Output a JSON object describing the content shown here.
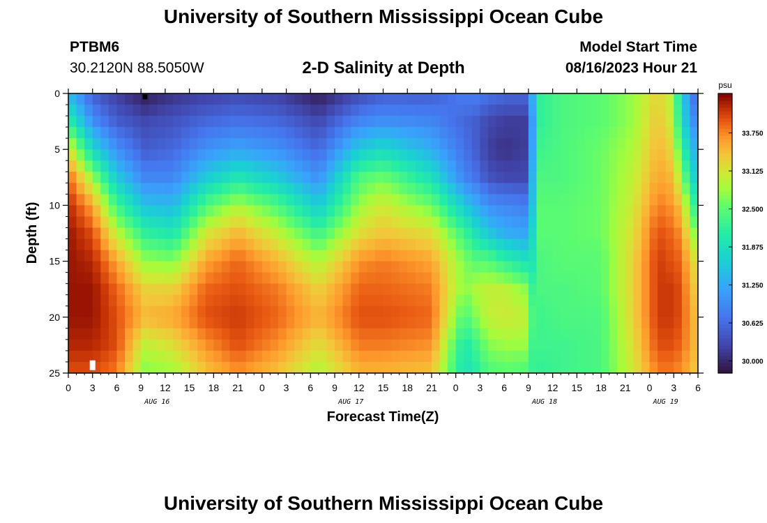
{
  "header": {
    "title": "University of Southern Mississippi Ocean Cube",
    "station_id": "PTBM6",
    "station_coords": "30.2120N  88.5050W",
    "plot_title": "2-D Salinity at Depth",
    "start_label": "Model Start Time",
    "start_value": "08/16/2023 Hour 21"
  },
  "footer": {
    "title": "University of Southern Mississippi Ocean Cube"
  },
  "chart_data": {
    "type": "heatmap",
    "title": "2-D Salinity at Depth",
    "xlabel": "Forecast Time(Z)",
    "ylabel": "Depth (ft)",
    "ylim": [
      0,
      25
    ],
    "y_ticks": [
      0,
      5,
      10,
      15,
      20,
      25
    ],
    "x_range_hours": [
      0,
      78
    ],
    "x_tick_labels": [
      "0",
      "3",
      "6",
      "9",
      "12",
      "15",
      "18",
      "21",
      "0",
      "3",
      "6",
      "9",
      "12",
      "15",
      "18",
      "21",
      "0",
      "3",
      "6",
      "9",
      "12",
      "15",
      "18",
      "21",
      "0",
      "3",
      "6"
    ],
    "date_labels": [
      {
        "label": "AUG 16",
        "hour": 11
      },
      {
        "label": "AUG 17",
        "hour": 35
      },
      {
        "label": "AUG 18",
        "hour": 59
      },
      {
        "label": "AUG 19",
        "hour": 74
      }
    ],
    "colorbar": {
      "unit": "psu",
      "min": 29.8,
      "max": 34.4,
      "tick_values": [
        30.0,
        30.625,
        31.25,
        31.875,
        32.5,
        33.125,
        33.75
      ],
      "tick_labels": [
        "30.000",
        "30.625",
        "31.250",
        "31.875",
        "32.500",
        "33.125",
        "33.750"
      ]
    },
    "field_hour_anchors": [
      0,
      3,
      6,
      9.5,
      13,
      17,
      21,
      26,
      31,
      36,
      39,
      45,
      49,
      50.5,
      52,
      54,
      57,
      57.7,
      58.5,
      61,
      66,
      70,
      73,
      74.5,
      76,
      77,
      78
    ],
    "depth_anchors_ft": [
      0,
      2.5,
      5,
      7.5,
      10,
      12.5,
      15,
      17.5,
      20,
      22.5,
      25
    ],
    "salinity_grid_psu": [
      [
        31.4,
        32.2,
        33.2,
        33.9,
        34.2,
        34.3,
        34.3,
        34.3,
        34.3,
        34.2,
        34.0
      ],
      [
        30.5,
        31.0,
        31.8,
        32.8,
        33.6,
        34.0,
        34.2,
        34.3,
        34.3,
        34.2,
        34.0
      ],
      [
        30.2,
        30.5,
        31.0,
        31.6,
        32.3,
        33.0,
        33.6,
        33.9,
        34.0,
        34.0,
        33.8
      ],
      [
        29.9,
        30.3,
        30.5,
        30.9,
        31.5,
        32.2,
        32.8,
        33.3,
        33.5,
        33.0,
        32.7
      ],
      [
        30.1,
        30.4,
        30.6,
        30.9,
        31.4,
        32.0,
        32.7,
        33.3,
        33.6,
        33.2,
        32.8
      ],
      [
        30.2,
        30.6,
        31.0,
        31.6,
        32.4,
        33.1,
        33.6,
        33.9,
        34.0,
        33.7,
        33.4
      ],
      [
        30.3,
        30.7,
        31.2,
        32.0,
        32.9,
        33.5,
        33.9,
        34.0,
        34.1,
        34.0,
        33.7
      ],
      [
        30.2,
        30.6,
        31.0,
        31.6,
        32.4,
        33.0,
        33.5,
        33.8,
        33.9,
        33.7,
        33.4
      ],
      [
        29.9,
        30.3,
        30.6,
        31.0,
        31.6,
        32.3,
        32.9,
        33.3,
        33.5,
        33.2,
        32.9
      ],
      [
        30.3,
        30.9,
        31.6,
        32.4,
        32.8,
        33.2,
        33.7,
        33.9,
        34.0,
        33.8,
        33.5
      ],
      [
        30.5,
        31.0,
        31.8,
        32.6,
        33.1,
        33.4,
        33.8,
        33.9,
        34.0,
        33.8,
        33.5
      ],
      [
        30.5,
        30.9,
        31.3,
        31.9,
        32.6,
        33.2,
        33.6,
        33.8,
        33.9,
        33.7,
        33.4
      ],
      [
        30.8,
        30.6,
        30.7,
        30.9,
        31.6,
        32.3,
        32.7,
        32.7,
        32.4,
        32.0,
        31.9
      ],
      [
        30.8,
        30.5,
        30.5,
        30.7,
        31.3,
        31.9,
        32.5,
        32.9,
        32.7,
        32.3,
        32.1
      ],
      [
        30.7,
        30.3,
        30.2,
        30.4,
        31.0,
        31.6,
        32.5,
        33.0,
        33.0,
        32.7,
        32.4
      ],
      [
        30.6,
        30.2,
        30.1,
        30.3,
        30.9,
        31.3,
        32.2,
        33.0,
        33.1,
        32.8,
        32.5
      ],
      [
        30.6,
        30.2,
        30.2,
        30.3,
        30.8,
        31.2,
        31.9,
        32.7,
        33.0,
        32.8,
        32.4
      ],
      [
        31.6,
        31.5,
        31.6,
        31.8,
        31.8,
        32.0,
        32.0,
        32.1,
        32.2,
        32.1,
        32.2
      ],
      [
        32.2,
        32.2,
        32.3,
        32.4,
        32.5,
        32.5,
        32.4,
        32.4,
        32.3,
        32.3,
        32.2
      ],
      [
        32.4,
        32.4,
        32.4,
        32.4,
        32.5,
        32.5,
        32.5,
        32.4,
        32.4,
        32.3,
        32.3
      ],
      [
        32.5,
        32.5,
        32.6,
        32.6,
        32.6,
        32.6,
        32.5,
        32.5,
        32.4,
        32.4,
        32.4
      ],
      [
        32.8,
        32.8,
        32.9,
        33.0,
        33.1,
        33.2,
        33.3,
        33.3,
        33.3,
        33.2,
        33.1
      ],
      [
        33.3,
        33.4,
        33.5,
        33.6,
        33.8,
        34.0,
        34.1,
        34.1,
        34.1,
        34.0,
        33.8
      ],
      [
        33.0,
        33.1,
        33.3,
        33.5,
        33.7,
        33.9,
        34.0,
        34.1,
        34.1,
        34.0,
        33.8
      ],
      [
        31.8,
        32.0,
        32.4,
        32.9,
        33.4,
        33.7,
        33.9,
        34.0,
        34.0,
        33.9,
        33.7
      ],
      [
        30.9,
        31.1,
        31.5,
        31.9,
        32.5,
        33.0,
        33.4,
        33.5,
        33.6,
        33.6,
        33.5
      ],
      [
        30.5,
        30.9,
        31.3,
        31.6,
        32.0,
        32.6,
        33.1,
        33.3,
        33.4,
        33.4,
        33.3
      ]
    ],
    "markers": [
      {
        "hour": 9.5,
        "depth_ft": 0.3,
        "color": "#000000"
      },
      {
        "hour": 3,
        "depth_ft": 24.3,
        "color": "#ffffff"
      }
    ]
  }
}
